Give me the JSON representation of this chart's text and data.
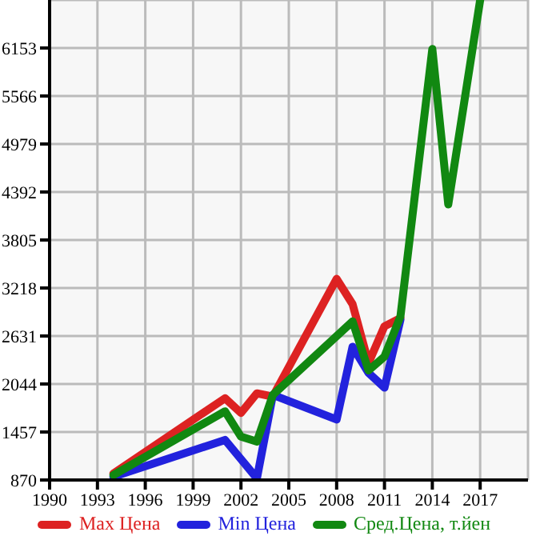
{
  "chart_data": {
    "type": "line",
    "xlim": [
      1990,
      2020
    ],
    "xticks": [
      1990,
      1993,
      1996,
      1999,
      2002,
      2005,
      2008,
      2011,
      2014,
      2017
    ],
    "ylim": [
      870,
      6740
    ],
    "yticks": [
      870,
      1457,
      2044,
      2631,
      3218,
      3805,
      4392,
      4979,
      5566,
      6153
    ],
    "grid": true,
    "legend": "bottom",
    "marker": "none",
    "line_style": "solid",
    "series": [
      {
        "name": "Max Цена",
        "color": "#dd2222",
        "x": [
          1994,
          2001,
          2002,
          2003,
          2004,
          2008,
          2009,
          2010,
          2011,
          2012
        ],
        "values": [
          950,
          1870,
          1690,
          1930,
          1890,
          3330,
          3020,
          2300,
          2750,
          2850
        ]
      },
      {
        "name": "Min Цена",
        "color": "#2222dd",
        "x": [
          1994,
          2001,
          2003,
          2004,
          2008,
          2009,
          2010,
          2011,
          2012
        ],
        "values": [
          910,
          1360,
          890,
          1910,
          1610,
          2500,
          2180,
          2000,
          2830
        ]
      },
      {
        "name": "Сред.Цена, т.йен",
        "color": "#118811",
        "x": [
          1994,
          2001,
          2002,
          2003,
          2004,
          2009,
          2010,
          2011,
          2012,
          2014,
          2015,
          2017
        ],
        "values": [
          930,
          1710,
          1400,
          1340,
          1910,
          2810,
          2210,
          2380,
          2870,
          6140,
          4240,
          6740
        ]
      }
    ]
  }
}
